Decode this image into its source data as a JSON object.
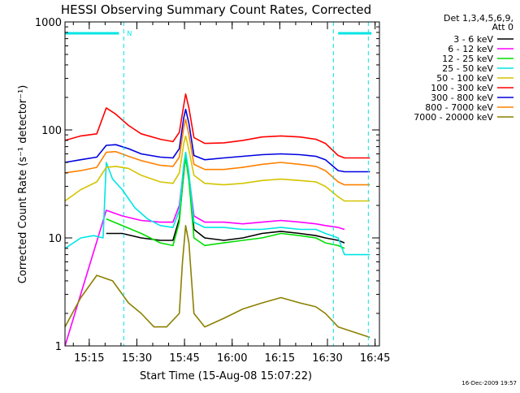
{
  "chart_data": {
    "type": "line",
    "title": "HESSI Observing Summary Count Rates, Corrected",
    "xlabel": "Start Time (15-Aug-08 15:07:22)",
    "ylabel": "Corrected Count Rate (s⁻¹ detector⁻¹)",
    "yscale": "log",
    "ylim": [
      1,
      1000
    ],
    "xlim_minutes": [
      0,
      99
    ],
    "x_unit": "minutes since 15:07:22",
    "y_ticks": [
      {
        "value": 1,
        "label": "1"
      },
      {
        "value": 10,
        "label": "10"
      },
      {
        "value": 100,
        "label": "100"
      },
      {
        "value": 1000,
        "label": "1000"
      }
    ],
    "x_ticks": [
      {
        "value": 7.63,
        "label": "15:15"
      },
      {
        "value": 22.63,
        "label": "15:30"
      },
      {
        "value": 37.63,
        "label": "15:45"
      },
      {
        "value": 52.63,
        "label": "16:00"
      },
      {
        "value": 67.63,
        "label": "16:15"
      },
      {
        "value": 82.63,
        "label": "16:30"
      },
      {
        "value": 97.63,
        "label": "16:45"
      }
    ],
    "legend_header": [
      "Det 1,3,4,5,6,9,",
      "Att 0"
    ],
    "legend_position": "right",
    "series": [
      {
        "name": "3 - 6 keV",
        "color": "#000000",
        "points": [
          [
            13,
            11
          ],
          [
            18,
            11
          ],
          [
            24,
            10
          ],
          [
            30,
            9.5
          ],
          [
            34,
            9.5
          ],
          [
            36,
            15
          ],
          [
            37.4,
            40
          ],
          [
            38,
            60
          ],
          [
            39,
            35
          ],
          [
            40.6,
            12
          ],
          [
            44,
            10
          ],
          [
            50,
            9.5
          ],
          [
            56,
            10
          ],
          [
            62,
            11
          ],
          [
            68,
            11.5
          ],
          [
            74,
            11
          ],
          [
            79,
            10.5
          ],
          [
            82,
            10
          ],
          [
            86,
            9.5
          ],
          [
            88,
            9
          ]
        ]
      },
      {
        "name": "6 - 12 keV",
        "color": "#ff00ff",
        "points": [
          [
            0,
            1
          ],
          [
            13,
            18
          ],
          [
            18,
            16
          ],
          [
            24,
            14.5
          ],
          [
            30,
            14
          ],
          [
            34,
            14
          ],
          [
            36,
            20
          ],
          [
            37.4,
            45
          ],
          [
            38,
            58
          ],
          [
            39,
            38
          ],
          [
            40.6,
            16
          ],
          [
            44,
            14
          ],
          [
            50,
            14
          ],
          [
            56,
            13.5
          ],
          [
            62,
            14
          ],
          [
            68,
            14.5
          ],
          [
            74,
            14
          ],
          [
            79,
            13.5
          ],
          [
            82,
            13
          ],
          [
            86,
            12.5
          ],
          [
            88,
            12
          ]
        ]
      },
      {
        "name": "12 - 25 keV",
        "color": "#00dd00",
        "points": [
          [
            13,
            15
          ],
          [
            18,
            13
          ],
          [
            24,
            11
          ],
          [
            30,
            9
          ],
          [
            34,
            8.5
          ],
          [
            36,
            14
          ],
          [
            37.4,
            42
          ],
          [
            38,
            55
          ],
          [
            39,
            34
          ],
          [
            40.6,
            10
          ],
          [
            44,
            8.5
          ],
          [
            50,
            9
          ],
          [
            56,
            9.5
          ],
          [
            62,
            10
          ],
          [
            68,
            11
          ],
          [
            74,
            10.5
          ],
          [
            79,
            10
          ],
          [
            82,
            9
          ],
          [
            86,
            8.5
          ],
          [
            88,
            8
          ]
        ]
      },
      {
        "name": "25 - 50 keV",
        "color": "#00e5e5",
        "points": [
          [
            0,
            8
          ],
          [
            5,
            10
          ],
          [
            9,
            10.5
          ],
          [
            12,
            10
          ],
          [
            13,
            50
          ],
          [
            15,
            35
          ],
          [
            18,
            28
          ],
          [
            22,
            19
          ],
          [
            26,
            15
          ],
          [
            30,
            13
          ],
          [
            34,
            12.5
          ],
          [
            36,
            18
          ],
          [
            37.4,
            48
          ],
          [
            38,
            62
          ],
          [
            39,
            40
          ],
          [
            40.6,
            14
          ],
          [
            44,
            12.5
          ],
          [
            50,
            12.5
          ],
          [
            56,
            12
          ],
          [
            62,
            12
          ],
          [
            68,
            12.5
          ],
          [
            74,
            12
          ],
          [
            79,
            12
          ],
          [
            82,
            11
          ],
          [
            86,
            10
          ],
          [
            88,
            7
          ],
          [
            96,
            7
          ]
        ]
      },
      {
        "name": "50 - 100 keV",
        "color": "#d4c400",
        "points": [
          [
            0,
            22
          ],
          [
            5,
            28
          ],
          [
            10,
            33
          ],
          [
            13,
            45
          ],
          [
            16,
            46
          ],
          [
            20,
            44
          ],
          [
            24,
            38
          ],
          [
            30,
            33
          ],
          [
            34,
            32
          ],
          [
            36,
            40
          ],
          [
            37.4,
            75
          ],
          [
            38,
            88
          ],
          [
            39,
            65
          ],
          [
            40.6,
            38
          ],
          [
            44,
            32
          ],
          [
            50,
            31
          ],
          [
            56,
            32
          ],
          [
            62,
            34
          ],
          [
            68,
            35
          ],
          [
            74,
            34
          ],
          [
            79,
            33
          ],
          [
            82,
            30
          ],
          [
            86,
            24
          ],
          [
            88,
            22
          ],
          [
            96,
            22
          ]
        ]
      },
      {
        "name": "100 - 300 keV",
        "color": "#ff0000",
        "points": [
          [
            0,
            80
          ],
          [
            5,
            88
          ],
          [
            10,
            92
          ],
          [
            13,
            160
          ],
          [
            16,
            140
          ],
          [
            20,
            110
          ],
          [
            24,
            92
          ],
          [
            30,
            82
          ],
          [
            34,
            78
          ],
          [
            36,
            95
          ],
          [
            37.4,
            170
          ],
          [
            38,
            215
          ],
          [
            39,
            160
          ],
          [
            40.6,
            85
          ],
          [
            44,
            75
          ],
          [
            50,
            76
          ],
          [
            56,
            80
          ],
          [
            62,
            86
          ],
          [
            68,
            88
          ],
          [
            74,
            86
          ],
          [
            79,
            82
          ],
          [
            82,
            75
          ],
          [
            86,
            58
          ],
          [
            88,
            55
          ],
          [
            96,
            55
          ]
        ]
      },
      {
        "name": "300 - 800 keV",
        "color": "#0000e0",
        "points": [
          [
            0,
            50
          ],
          [
            5,
            53
          ],
          [
            10,
            56
          ],
          [
            13,
            72
          ],
          [
            16,
            73
          ],
          [
            20,
            67
          ],
          [
            24,
            60
          ],
          [
            30,
            56
          ],
          [
            34,
            55
          ],
          [
            36,
            67
          ],
          [
            37.4,
            130
          ],
          [
            38,
            155
          ],
          [
            39,
            115
          ],
          [
            40.6,
            58
          ],
          [
            44,
            53
          ],
          [
            50,
            55
          ],
          [
            56,
            57
          ],
          [
            62,
            59
          ],
          [
            68,
            60
          ],
          [
            74,
            59
          ],
          [
            79,
            57
          ],
          [
            82,
            53
          ],
          [
            86,
            42
          ],
          [
            88,
            41
          ],
          [
            96,
            41
          ]
        ]
      },
      {
        "name": "800 - 7000 keV",
        "color": "#ff8000",
        "points": [
          [
            0,
            40
          ],
          [
            5,
            42
          ],
          [
            10,
            45
          ],
          [
            13,
            62
          ],
          [
            16,
            63
          ],
          [
            20,
            57
          ],
          [
            24,
            52
          ],
          [
            30,
            47
          ],
          [
            34,
            46
          ],
          [
            36,
            56
          ],
          [
            37.4,
            105
          ],
          [
            38,
            125
          ],
          [
            39,
            90
          ],
          [
            40.6,
            48
          ],
          [
            44,
            43
          ],
          [
            50,
            43
          ],
          [
            56,
            45
          ],
          [
            62,
            48
          ],
          [
            68,
            50
          ],
          [
            74,
            48
          ],
          [
            79,
            46
          ],
          [
            82,
            42
          ],
          [
            86,
            33
          ],
          [
            88,
            31
          ],
          [
            96,
            31
          ]
        ]
      },
      {
        "name": "7000 - 20000 keV",
        "color": "#8b8000",
        "points": [
          [
            0,
            1.5
          ],
          [
            5,
            2.8
          ],
          [
            10,
            4.5
          ],
          [
            15,
            4
          ],
          [
            20,
            2.5
          ],
          [
            24,
            2
          ],
          [
            28,
            1.5
          ],
          [
            32,
            1.5
          ],
          [
            36,
            2
          ],
          [
            37,
            6
          ],
          [
            38,
            13
          ],
          [
            39,
            9
          ],
          [
            40.6,
            2
          ],
          [
            44,
            1.5
          ],
          [
            50,
            1.8
          ],
          [
            56,
            2.2
          ],
          [
            62,
            2.5
          ],
          [
            68,
            2.8
          ],
          [
            74,
            2.5
          ],
          [
            79,
            2.3
          ],
          [
            82,
            2
          ],
          [
            86,
            1.5
          ],
          [
            96,
            1.2
          ]
        ]
      }
    ],
    "annotations": {
      "top_bar_segments_minutes": [
        [
          0,
          17
        ],
        [
          86,
          96.5
        ]
      ],
      "vertical_markers_minutes": [
        18.5,
        84.5,
        95.5
      ],
      "vertical_marker_label": "N"
    },
    "footer_date": "16-Dec-2009 19:57"
  },
  "colors": {
    "bar": "#00e5e5",
    "axis": "#000000"
  }
}
